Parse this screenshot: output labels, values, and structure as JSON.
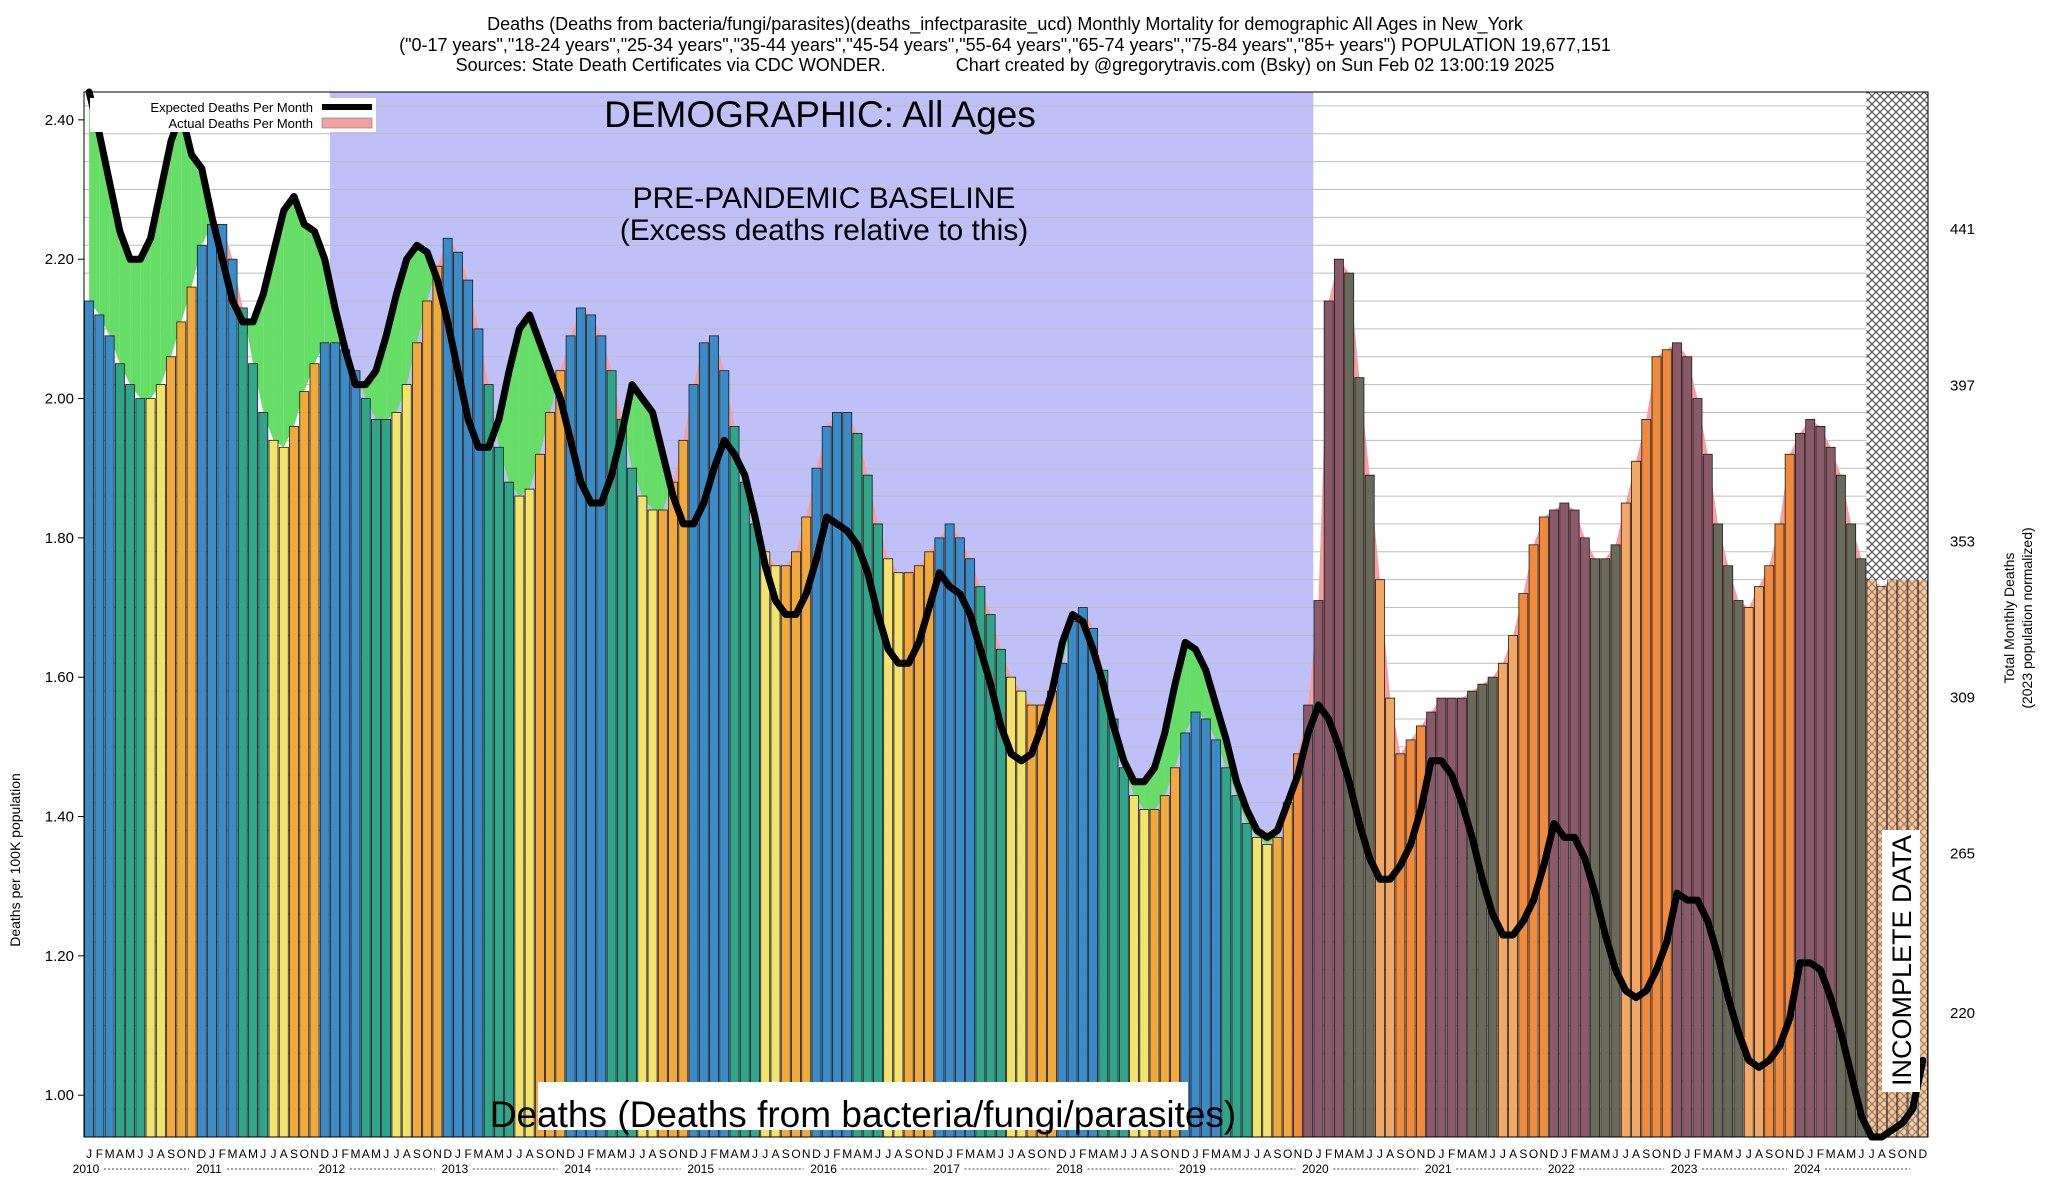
{
  "chart_data": {
    "type": "bar",
    "title_lines": [
      "Deaths (Deaths from bacteria/fungi/parasites)(deaths_infectparasite_ucd) Monthly Mortality for demographic All Ages in New_York",
      "(\"0-17 years\",\"18-24 years\",\"25-34 years\",\"35-44 years\",\"45-54 years\",\"55-64 years\",\"65-74 years\",\"75-84 years\",\"85+ years\") POPULATION 19,677,151",
      "Sources: State Death Certificates via CDC WONDER.              Chart created by @gregorytravis.com (Bsky) on Sun Feb 02 13:00:19 2025"
    ],
    "demographic_label": "DEMOGRAPHIC: All Ages",
    "baseline_label_lines": [
      "PRE-PANDEMIC BASELINE",
      "(Excess deaths relative to this)"
    ],
    "footer_label": "Deaths (Deaths from bacteria/fungi/parasites)",
    "incomplete_label": "INCOMPLETE DATA",
    "ylabel": "Deaths per 100K population",
    "ylabel_right_lines": [
      "Total Monthly Deaths",
      "(2023 population normalized)"
    ],
    "ylim": [
      0.94,
      2.44
    ],
    "yticks": [
      1.0,
      1.2,
      1.4,
      1.6,
      1.8,
      2.0,
      2.2,
      2.4
    ],
    "ytick_labels": [
      "1.00",
      "1.20",
      "1.40",
      "1.60",
      "1.80",
      "2.00",
      "2.20",
      "2.40"
    ],
    "right_ticks": [
      {
        "value": 1.118,
        "label": "220"
      },
      {
        "value": 1.347,
        "label": "265"
      },
      {
        "value": 1.571,
        "label": "309"
      },
      {
        "value": 1.795,
        "label": "353"
      },
      {
        "value": 2.019,
        "label": "397"
      },
      {
        "value": 2.243,
        "label": "441"
      }
    ],
    "grid": true,
    "legend": {
      "position": "top-left",
      "items": [
        {
          "label": "Expected Deaths Per Month",
          "style": "line",
          "color": "#000000"
        },
        {
          "label": "Actual Deaths Per Month",
          "style": "area",
          "color": "#f4a0a0"
        }
      ]
    },
    "start_year": 2010,
    "years": [
      "2010",
      "2011",
      "2012",
      "2013",
      "2014",
      "2015",
      "2016",
      "2017",
      "2018",
      "2019",
      "2020",
      "2021",
      "2022",
      "2023",
      "2024"
    ],
    "month_letters": [
      "J",
      "F",
      "M",
      "A",
      "M",
      "J",
      "J",
      "A",
      "S",
      "O",
      "N",
      "D"
    ],
    "baseline_years": [
      2012,
      2019
    ],
    "incomplete_from_index": 174,
    "colors": {
      "winter": "#3a8cc8",
      "spring": "#2fa58a",
      "summer": "#f2e46b",
      "fall": "#f2a93c",
      "winter_excess": "#8a5a6a",
      "spring_excess": "#6a6a5a",
      "fall_excess": "#f28a3c",
      "summer_excess": "#f2a864",
      "baseline_band": "#c0c0f8",
      "deficit_fill": "#66dd66",
      "excess_fill": "#f4a0a0",
      "expected_line": "#000000",
      "incomplete_fill": "#e89848"
    },
    "actual": [
      2.14,
      2.12,
      2.09,
      2.05,
      2.02,
      2.0,
      2.0,
      2.02,
      2.06,
      2.11,
      2.16,
      2.22,
      2.25,
      2.25,
      2.2,
      2.13,
      2.05,
      1.98,
      1.94,
      1.93,
      1.96,
      2.01,
      2.05,
      2.08,
      2.08,
      2.07,
      2.04,
      2.0,
      1.97,
      1.97,
      1.98,
      2.02,
      2.08,
      2.14,
      2.19,
      2.23,
      2.21,
      2.17,
      2.1,
      2.02,
      1.93,
      1.88,
      1.86,
      1.87,
      1.92,
      1.98,
      2.04,
      2.09,
      2.13,
      2.12,
      2.09,
      2.04,
      1.97,
      1.9,
      1.86,
      1.84,
      1.84,
      1.88,
      1.94,
      2.02,
      2.08,
      2.09,
      2.04,
      1.96,
      1.88,
      1.82,
      1.78,
      1.76,
      1.76,
      1.78,
      1.83,
      1.9,
      1.96,
      1.98,
      1.98,
      1.95,
      1.89,
      1.82,
      1.77,
      1.75,
      1.75,
      1.76,
      1.78,
      1.8,
      1.82,
      1.8,
      1.77,
      1.73,
      1.69,
      1.64,
      1.6,
      1.58,
      1.56,
      1.56,
      1.58,
      1.62,
      1.68,
      1.7,
      1.67,
      1.61,
      1.54,
      1.47,
      1.43,
      1.41,
      1.41,
      1.43,
      1.47,
      1.52,
      1.55,
      1.54,
      1.51,
      1.47,
      1.43,
      1.39,
      1.37,
      1.36,
      1.37,
      1.42,
      1.49,
      1.56,
      1.71,
      2.14,
      2.2,
      2.18,
      2.03,
      1.89,
      1.74,
      1.57,
      1.49,
      1.51,
      1.53,
      1.55,
      1.57,
      1.57,
      1.57,
      1.58,
      1.59,
      1.6,
      1.62,
      1.66,
      1.72,
      1.79,
      1.83,
      1.84,
      1.85,
      1.84,
      1.8,
      1.77,
      1.77,
      1.79,
      1.85,
      1.91,
      1.97,
      2.06,
      2.07,
      2.08,
      2.06,
      2.0,
      1.92,
      1.82,
      1.76,
      1.71,
      1.7,
      1.73,
      1.76,
      1.82,
      1.92,
      1.95,
      1.97,
      1.96,
      1.93,
      1.89,
      1.82,
      1.77,
      1.74,
      1.73,
      1.74,
      1.75,
      1.75,
      1.76
    ],
    "expected": [
      2.44,
      2.38,
      2.31,
      2.24,
      2.2,
      2.2,
      2.23,
      2.3,
      2.37,
      2.41,
      2.35,
      2.33,
      2.26,
      2.2,
      2.14,
      2.11,
      2.11,
      2.15,
      2.21,
      2.27,
      2.29,
      2.25,
      2.24,
      2.2,
      2.13,
      2.07,
      2.02,
      2.02,
      2.04,
      2.09,
      2.15,
      2.2,
      2.22,
      2.21,
      2.17,
      2.11,
      2.04,
      1.97,
      1.93,
      1.93,
      1.97,
      2.04,
      2.1,
      2.12,
      2.08,
      2.04,
      2.0,
      1.94,
      1.88,
      1.85,
      1.85,
      1.89,
      1.95,
      2.02,
      2.0,
      1.98,
      1.92,
      1.86,
      1.82,
      1.82,
      1.85,
      1.9,
      1.94,
      1.92,
      1.89,
      1.83,
      1.76,
      1.71,
      1.69,
      1.69,
      1.72,
      1.77,
      1.83,
      1.82,
      1.81,
      1.79,
      1.75,
      1.69,
      1.64,
      1.62,
      1.62,
      1.65,
      1.7,
      1.75,
      1.73,
      1.72,
      1.69,
      1.64,
      1.59,
      1.53,
      1.49,
      1.48,
      1.49,
      1.53,
      1.58,
      1.65,
      1.69,
      1.68,
      1.64,
      1.59,
      1.53,
      1.48,
      1.45,
      1.45,
      1.47,
      1.52,
      1.59,
      1.65,
      1.64,
      1.61,
      1.56,
      1.51,
      1.45,
      1.41,
      1.38,
      1.37,
      1.38,
      1.42,
      1.46,
      1.52,
      1.56,
      1.54,
      1.5,
      1.45,
      1.39,
      1.34,
      1.31,
      1.31,
      1.33,
      1.36,
      1.41,
      1.48,
      1.48,
      1.46,
      1.42,
      1.37,
      1.31,
      1.26,
      1.23,
      1.23,
      1.25,
      1.28,
      1.33,
      1.39,
      1.37,
      1.37,
      1.34,
      1.29,
      1.23,
      1.18,
      1.15,
      1.14,
      1.15,
      1.18,
      1.22,
      1.29,
      1.28,
      1.28,
      1.25,
      1.2,
      1.14,
      1.09,
      1.05,
      1.04,
      1.05,
      1.07,
      1.11,
      1.19,
      1.19,
      1.18,
      1.14,
      1.09,
      1.03,
      0.97,
      0.94,
      0.94,
      0.95,
      0.96,
      0.98,
      1.05
    ]
  }
}
